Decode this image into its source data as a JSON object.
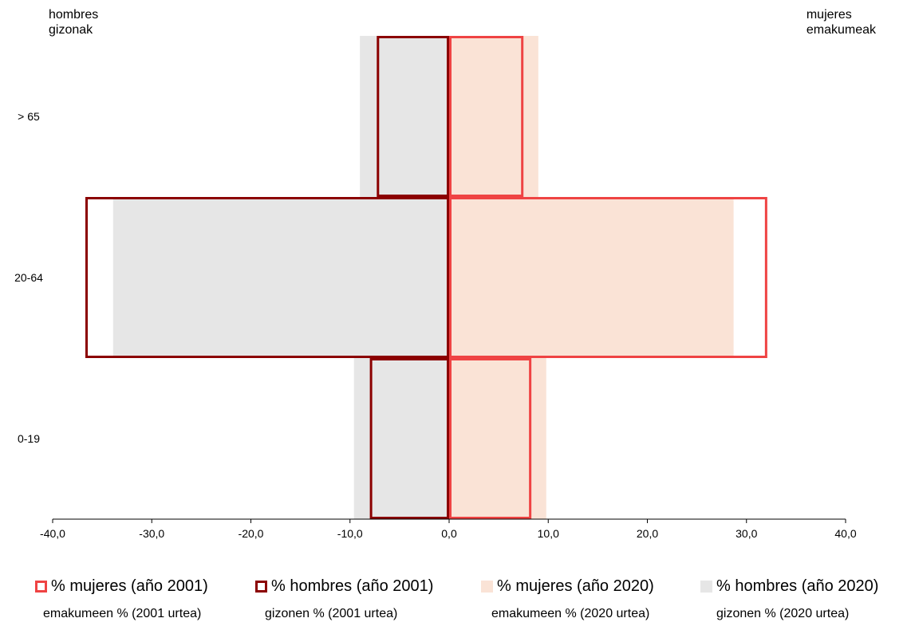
{
  "header": {
    "left": {
      "line1": "hombres",
      "line2": "gizonak"
    },
    "right": {
      "line1": "mujeres",
      "line2": "emakumeak"
    }
  },
  "chart_data": {
    "type": "bar",
    "orientation": "horizontal",
    "categories": [
      "> 65",
      "20-64",
      "0-19"
    ],
    "xlim": [
      -40,
      40
    ],
    "xticks": [
      -40,
      -30,
      -20,
      -10,
      0,
      10,
      20,
      30,
      40
    ],
    "xtick_labels": [
      "-40,0",
      "-30,0",
      "-20,0",
      "-10,0",
      "0,0",
      "10,0",
      "20,0",
      "30,0",
      "40,0"
    ],
    "series": [
      {
        "name": "% hombres (año 2020)",
        "values": [
          -9.0,
          -33.9,
          -9.6
        ],
        "style": "filled",
        "color": "#e6e6e6"
      },
      {
        "name": "% mujeres (año 2020)",
        "values": [
          9.0,
          28.7,
          9.8
        ],
        "style": "filled",
        "color": "#fae3d6"
      },
      {
        "name": "% mujeres (año 2001)",
        "values": [
          7.5,
          32.1,
          8.3
        ],
        "style": "outline",
        "color": "#ef4343"
      },
      {
        "name": "% hombres (año 2001)",
        "values": [
          -7.3,
          -36.7,
          -8.0
        ],
        "style": "outline",
        "color": "#8b0000"
      }
    ],
    "grid": false
  },
  "legend": [
    {
      "label": "% mujeres (año 2001)",
      "sub": "emakumeen % (2001 urtea)",
      "style": "outline",
      "color": "#ef4343"
    },
    {
      "label": "% hombres (año 2001)",
      "sub": "gizonen % (2001 urtea)",
      "style": "outline",
      "color": "#8b0000"
    },
    {
      "label": "% mujeres (año 2020)",
      "sub": "emakumeen % (2020 urtea)",
      "style": "filled",
      "color": "#fae3d6"
    },
    {
      "label": "% hombres (año 2020)",
      "sub": "gizonen % (2020 urtea)",
      "style": "filled",
      "color": "#e6e6e6"
    }
  ]
}
